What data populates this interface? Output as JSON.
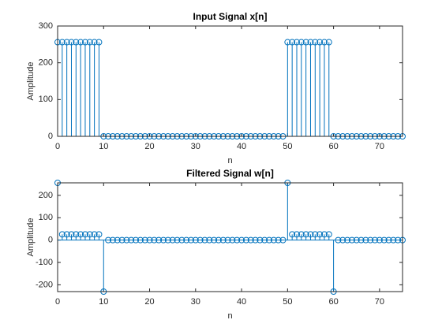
{
  "chart_data": [
    {
      "type": "stem",
      "title": "Input Signal x[n]",
      "xlabel": "n",
      "ylabel": "Amplitude",
      "color": "#0072bd",
      "xlim": [
        0,
        75
      ],
      "xticks": [
        0,
        10,
        20,
        30,
        40,
        50,
        60,
        70
      ],
      "ylim": [
        0,
        300
      ],
      "yticks": [
        0,
        100,
        200,
        300
      ],
      "x": [
        0,
        1,
        2,
        3,
        4,
        5,
        6,
        7,
        8,
        9,
        10,
        11,
        12,
        13,
        14,
        15,
        16,
        17,
        18,
        19,
        20,
        21,
        22,
        23,
        24,
        25,
        26,
        27,
        28,
        29,
        30,
        31,
        32,
        33,
        34,
        35,
        36,
        37,
        38,
        39,
        40,
        41,
        42,
        43,
        44,
        45,
        46,
        47,
        48,
        49,
        50,
        51,
        52,
        53,
        54,
        55,
        56,
        57,
        58,
        59,
        60,
        61,
        62,
        63,
        64,
        65,
        66,
        67,
        68,
        69,
        70,
        71,
        72,
        73,
        74,
        75
      ],
      "values": [
        256,
        256,
        256,
        256,
        256,
        256,
        256,
        256,
        256,
        256,
        0,
        0,
        0,
        0,
        0,
        0,
        0,
        0,
        0,
        0,
        0,
        0,
        0,
        0,
        0,
        0,
        0,
        0,
        0,
        0,
        0,
        0,
        0,
        0,
        0,
        0,
        0,
        0,
        0,
        0,
        0,
        0,
        0,
        0,
        0,
        0,
        0,
        0,
        0,
        0,
        256,
        256,
        256,
        256,
        256,
        256,
        256,
        256,
        256,
        256,
        0,
        0,
        0,
        0,
        0,
        0,
        0,
        0,
        0,
        0,
        0,
        0,
        0,
        0,
        0,
        0
      ]
    },
    {
      "type": "stem",
      "title": "Filtered Signal w[n]",
      "xlabel": "n",
      "ylabel": "Amplitude",
      "color": "#0072bd",
      "xlim": [
        0,
        75
      ],
      "xticks": [
        0,
        10,
        20,
        30,
        40,
        50,
        60,
        70
      ],
      "ylim": [
        -230.4,
        256
      ],
      "yticks": [
        -200,
        -100,
        0,
        100,
        200
      ],
      "x": [
        0,
        1,
        2,
        3,
        4,
        5,
        6,
        7,
        8,
        9,
        10,
        11,
        12,
        13,
        14,
        15,
        16,
        17,
        18,
        19,
        20,
        21,
        22,
        23,
        24,
        25,
        26,
        27,
        28,
        29,
        30,
        31,
        32,
        33,
        34,
        35,
        36,
        37,
        38,
        39,
        40,
        41,
        42,
        43,
        44,
        45,
        46,
        47,
        48,
        49,
        50,
        51,
        52,
        53,
        54,
        55,
        56,
        57,
        58,
        59,
        60,
        61,
        62,
        63,
        64,
        65,
        66,
        67,
        68,
        69,
        70,
        71,
        72,
        73,
        74,
        75
      ],
      "values": [
        256,
        25.6,
        25.6,
        25.6,
        25.6,
        25.6,
        25.6,
        25.6,
        25.6,
        25.6,
        -230.4,
        0,
        0,
        0,
        0,
        0,
        0,
        0,
        0,
        0,
        0,
        0,
        0,
        0,
        0,
        0,
        0,
        0,
        0,
        0,
        0,
        0,
        0,
        0,
        0,
        0,
        0,
        0,
        0,
        0,
        0,
        0,
        0,
        0,
        0,
        0,
        0,
        0,
        0,
        0,
        256,
        25.6,
        25.6,
        25.6,
        25.6,
        25.6,
        25.6,
        25.6,
        25.6,
        25.6,
        -230.4,
        0,
        0,
        0,
        0,
        0,
        0,
        0,
        0,
        0,
        0,
        0,
        0,
        0,
        0,
        0
      ]
    }
  ]
}
